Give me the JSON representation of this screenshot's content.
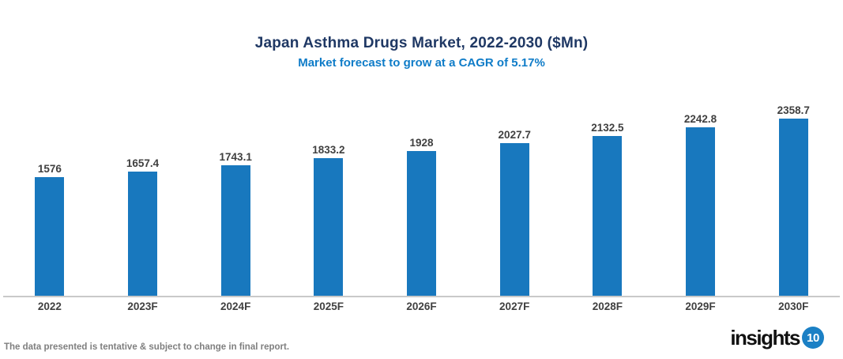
{
  "header": {
    "title": "Japan Asthma Drugs Market, 2022-2030 ($Mn)",
    "subtitle": "Market forecast to grow at a CAGR of 5.17%"
  },
  "chart_data": {
    "type": "bar",
    "title": "Japan Asthma Drugs Market, 2022-2030 ($Mn)",
    "subtitle": "Market forecast to grow at a CAGR of 5.17%",
    "categories": [
      "2022",
      "2023F",
      "2024F",
      "2025F",
      "2026F",
      "2027F",
      "2028F",
      "2029F",
      "2030F"
    ],
    "values": [
      1576,
      1657.4,
      1743.1,
      1833.2,
      1928,
      2027.7,
      2132.5,
      2242.8,
      2358.7
    ],
    "unit": "$Mn",
    "cagr": "5.17%",
    "xlabel": "",
    "ylabel": "",
    "ylim": [
      0,
      2358.7
    ],
    "grid": false,
    "legend": false,
    "data_labels": true,
    "bar_color": "#1878BE"
  },
  "footer": {
    "note": "The data presented is tentative & subject to change in final report.",
    "logo_text": "insights",
    "logo_badge": "10"
  },
  "colors": {
    "title": "#1F3864",
    "subtitle": "#0F7CC8",
    "bar": "#1878BE",
    "data_label": "#404040",
    "axis_line": "#C9C9C9",
    "note": "#7F7F7F",
    "logo_text": "#111111",
    "logo_badge_bg": "#1B80C5"
  }
}
